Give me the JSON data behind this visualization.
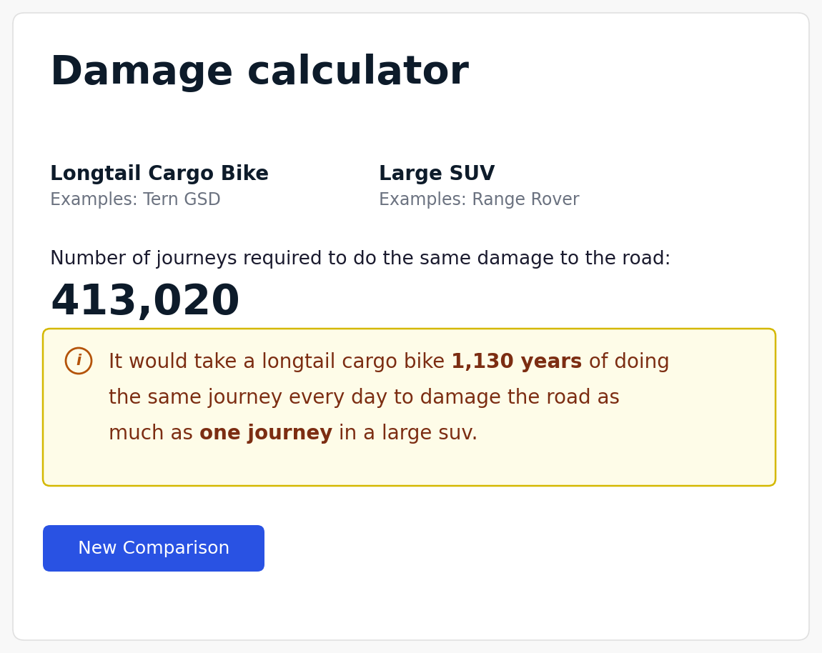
{
  "title": "Damage calculator",
  "title_fontsize": 40,
  "title_color": "#0d1b2a",
  "title_fontweight": "bold",
  "left_label": "Longtail Cargo Bike",
  "left_example": "Examples: Tern GSD",
  "right_label": "Large SUV",
  "right_example": "Examples: Range Rover",
  "label_fontsize": 20,
  "label_fontweight": "bold",
  "label_color": "#0d1b2a",
  "example_fontsize": 17,
  "example_color": "#6b7280",
  "journeys_prefix": "Number of journeys required to do the same damage to the road:",
  "journeys_prefix_fontsize": 19,
  "journeys_prefix_color": "#1a1a2e",
  "journeys_number": "413,020",
  "journeys_number_fontsize": 42,
  "journeys_number_fontweight": "bold",
  "journeys_number_color": "#0d1b2a",
  "info_box_bg": "#fefce8",
  "info_box_border": "#d4b800",
  "info_icon_color": "#b45309",
  "info_text_color": "#7c2d12",
  "info_fontsize": 20,
  "button_text": "New Comparison",
  "button_bg": "#2952e3",
  "button_text_color": "#ffffff",
  "button_fontsize": 18,
  "bg_color": "#f8f8f8",
  "card_bg": "#ffffff",
  "card_border": "#e0e0e0"
}
